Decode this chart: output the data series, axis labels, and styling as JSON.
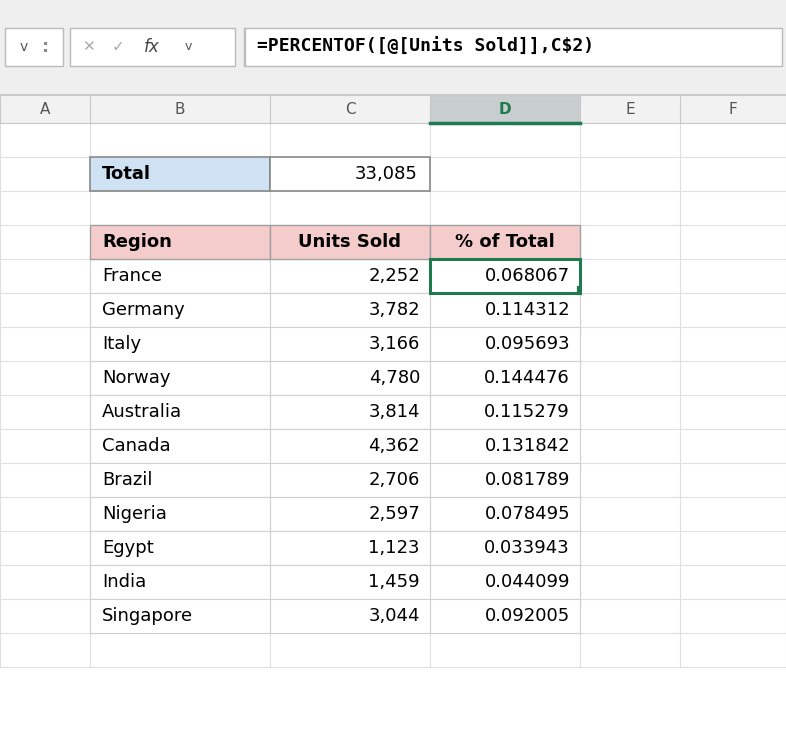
{
  "formula_bar_text": "=PERCENTOF([@[Units Sold]],C$2)",
  "col_headers": [
    "A",
    "B",
    "C",
    "D",
    "E",
    "F"
  ],
  "total_label": "Total",
  "total_value": "33,085",
  "table_headers": [
    "Region",
    "Units Sold",
    "% of Total"
  ],
  "table_data": [
    [
      "France",
      "2,252",
      "0.068067"
    ],
    [
      "Germany",
      "3,782",
      "0.114312"
    ],
    [
      "Italy",
      "3,166",
      "0.095693"
    ],
    [
      "Norway",
      "4,780",
      "0.144476"
    ],
    [
      "Australia",
      "3,814",
      "0.115279"
    ],
    [
      "Canada",
      "4,362",
      "0.131842"
    ],
    [
      "Brazil",
      "2,706",
      "0.081789"
    ],
    [
      "Nigeria",
      "2,597",
      "0.078495"
    ],
    [
      "Egypt",
      "1,123",
      "0.033943"
    ],
    [
      "India",
      "1,459",
      "0.044099"
    ],
    [
      "Singapore",
      "3,044",
      "0.092005"
    ]
  ],
  "header_bg_color": "#F4CCCC",
  "total_label_bg": "#CFE2F3",
  "selected_cell_border": "#1F7A4D",
  "col_d_header_bg": "#C8CDD0",
  "formula_bar_bg": "#F2F2F2",
  "toolbar_bg": "#E8E8E8",
  "grid_color": "#D0D0D0",
  "col_header_bg": "#F2F2F2",
  "row_header_bg": "#F2F2F2",
  "bg_color": "#FFFFFF",
  "font_size": 11,
  "small_font_size": 10
}
